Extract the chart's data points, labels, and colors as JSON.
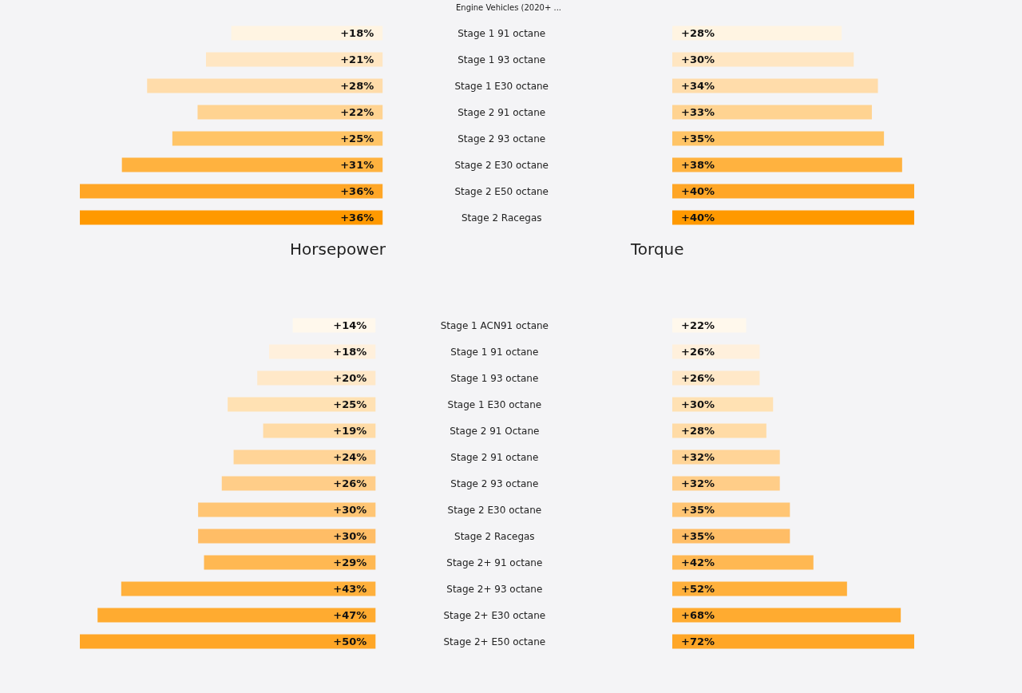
{
  "chart_data": [
    {
      "type": "bar",
      "orientation": "horizontal",
      "title": "Engine Vehicles (2020+ ...",
      "xlabel": "Horsepower",
      "categories": [
        "Stage 1 91 octane",
        "Stage 1 93 octane",
        "Stage 1 E30 octane",
        "Stage 2 91 octane",
        "Stage 2 93 octane",
        "Stage 2 E30 octane",
        "Stage 2 E50 octane",
        "Stage 2 Racegas"
      ],
      "values": [
        18,
        21,
        28,
        22,
        25,
        31,
        36,
        36
      ],
      "value_labels": [
        "+18%",
        "+21%",
        "+28%",
        "+22%",
        "+25%",
        "+31%",
        "+36%",
        "+36%"
      ],
      "colors": [
        "#fff4e2",
        "#ffe6c2",
        "#ffdcaa",
        "#ffd391",
        "#ffc466",
        "#ffb23f",
        "#ffa626",
        "#ff9900"
      ]
    },
    {
      "type": "bar",
      "orientation": "horizontal",
      "xlabel": "Torque",
      "categories": [
        null,
        null,
        null,
        null,
        null,
        null,
        null,
        null
      ],
      "values": [
        28,
        30,
        34,
        33,
        35,
        38,
        40,
        40
      ],
      "value_labels": [
        "+28%",
        "+30%",
        "+34%",
        "+33%",
        "+35%",
        "+38%",
        "+40%",
        "+40%"
      ],
      "colors": [
        "#fff4e2",
        "#ffe6c2",
        "#ffdcaa",
        "#ffd391",
        "#ffc466",
        "#ffb23f",
        "#ffa626",
        "#ff9900"
      ]
    },
    {
      "type": "bar",
      "orientation": "horizontal",
      "categories": [
        "Stage 1 ACN91 octane",
        "Stage 1 91 octane",
        "Stage 1 93 octane",
        "Stage 1 E30 octane",
        "Stage 2 91 Octane",
        "Stage 2 91 octane",
        "Stage 2 93 octane",
        "Stage 2 E30 octane",
        "Stage 2 Racegas",
        "Stage 2+ 91 octane",
        "Stage 2+ 93 octane",
        "Stage 2+ E30 octane",
        "Stage 2+ E50 octane"
      ],
      "values": [
        14,
        18,
        20,
        25,
        19,
        24,
        26,
        30,
        30,
        29,
        43,
        47,
        50
      ],
      "value_labels": [
        "+14%",
        "+18%",
        "+20%",
        "+25%",
        "+19%",
        "+24%",
        "+26%",
        "+30%",
        "+30%",
        "+29%",
        "+43%",
        "+47%",
        "+50%"
      ],
      "colors": [
        "#fff8ec",
        "#fff0dc",
        "#ffe8c8",
        "#ffe1b3",
        "#ffdba6",
        "#ffd497",
        "#ffcd88",
        "#ffc574",
        "#ffbd66",
        "#ffb852",
        "#ffb03c",
        "#ffab30",
        "#ffa626"
      ]
    },
    {
      "type": "bar",
      "orientation": "horizontal",
      "categories": [
        null,
        null,
        null,
        null,
        null,
        null,
        null,
        null,
        null,
        null,
        null,
        null,
        null
      ],
      "values": [
        22,
        26,
        26,
        30,
        28,
        32,
        32,
        35,
        35,
        42,
        52,
        68,
        72
      ],
      "value_labels": [
        "+22%",
        "+26%",
        "+26%",
        "+30%",
        "+28%",
        "+32%",
        "+32%",
        "+35%",
        "+35%",
        "+42%",
        "+52%",
        "+68%",
        "+72%"
      ],
      "colors": [
        "#fff8ec",
        "#fff0dc",
        "#ffe8c8",
        "#ffe1b3",
        "#ffdba6",
        "#ffd497",
        "#ffcd88",
        "#ffc574",
        "#ffbd66",
        "#ffb852",
        "#ffb03c",
        "#ffab30",
        "#ffa626"
      ]
    }
  ]
}
